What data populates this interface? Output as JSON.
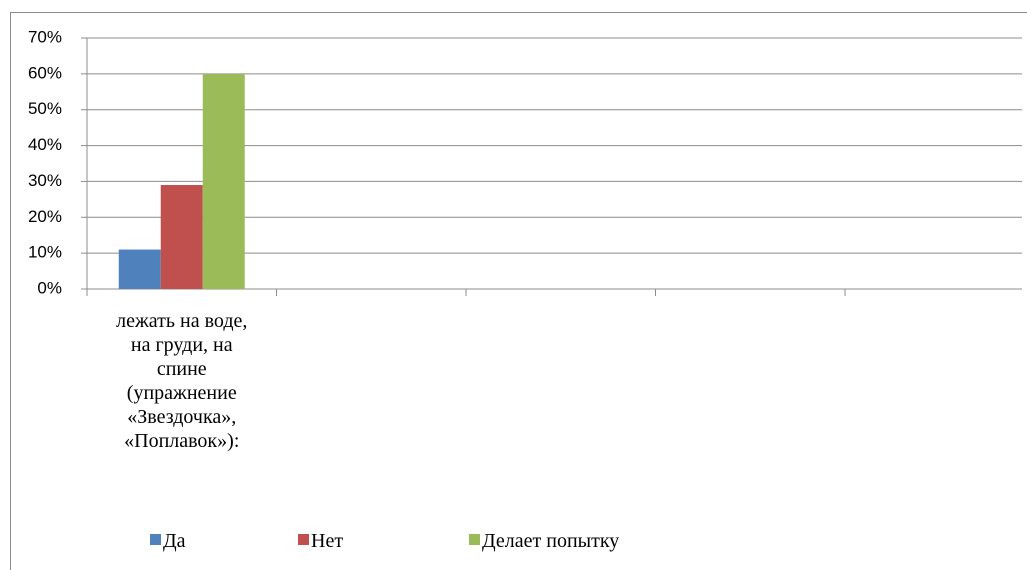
{
  "chart_data": {
    "type": "bar",
    "categories": [
      "лежать на воде,\nна груди, на\nспине\n(упражнение\n«Звездочка»,\n«Поплавок»):",
      null,
      null,
      null,
      null
    ],
    "series": [
      {
        "name": "Да",
        "color": "#4f81bd",
        "values": [
          11,
          null,
          null,
          null,
          null
        ]
      },
      {
        "name": "Нет",
        "color": "#c0504d",
        "values": [
          29,
          null,
          null,
          null,
          null
        ]
      },
      {
        "name": "Делает попытку",
        "color": "#9bbb59",
        "values": [
          60,
          null,
          null,
          null,
          null
        ]
      }
    ],
    "ylim": [
      0,
      70
    ],
    "yticks": [
      {
        "value": 0,
        "label": "0%"
      },
      {
        "value": 10,
        "label": "10%"
      },
      {
        "value": 20,
        "label": "20%"
      },
      {
        "value": 30,
        "label": "30%"
      },
      {
        "value": 40,
        "label": "40%"
      },
      {
        "value": 50,
        "label": "50%"
      },
      {
        "value": 60,
        "label": "60%"
      },
      {
        "value": 70,
        "label": "70%"
      }
    ],
    "grid": true,
    "legend": "bottom"
  }
}
